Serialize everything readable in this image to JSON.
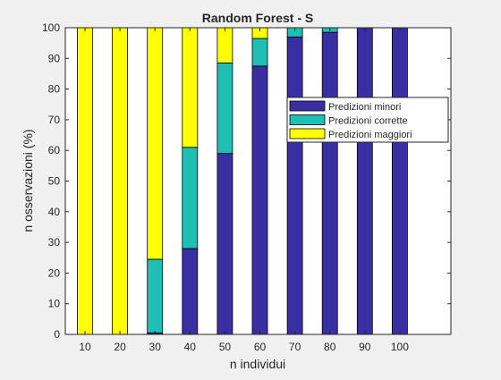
{
  "chart_data": {
    "type": "bar",
    "stacked": true,
    "title": "Random Forest - S",
    "xlabel": "n individui",
    "ylabel": "n osservazioni (%)",
    "categories": [
      "10",
      "20",
      "30",
      "40",
      "50",
      "60",
      "70",
      "80",
      "90",
      "100"
    ],
    "ylim": [
      0,
      100
    ],
    "yticks": [
      0,
      10,
      20,
      30,
      40,
      50,
      60,
      70,
      80,
      90,
      100
    ],
    "legend_position": "top-right",
    "grid": false,
    "series": [
      {
        "name": "Predizioni minori",
        "color": "#3a2ea3",
        "values": [
          0,
          0,
          0.5,
          28,
          59,
          87.5,
          97,
          98.5,
          100,
          100
        ]
      },
      {
        "name": "Predizioni corrette",
        "color": "#1fc0b3",
        "values": [
          0,
          0,
          24,
          33,
          29.5,
          9,
          3,
          1.5,
          0,
          0
        ]
      },
      {
        "name": "Predizioni maggiori",
        "color": "#ffff00",
        "values": [
          100,
          100,
          75.5,
          39,
          11.5,
          3.5,
          0,
          0,
          0,
          0
        ]
      }
    ]
  }
}
